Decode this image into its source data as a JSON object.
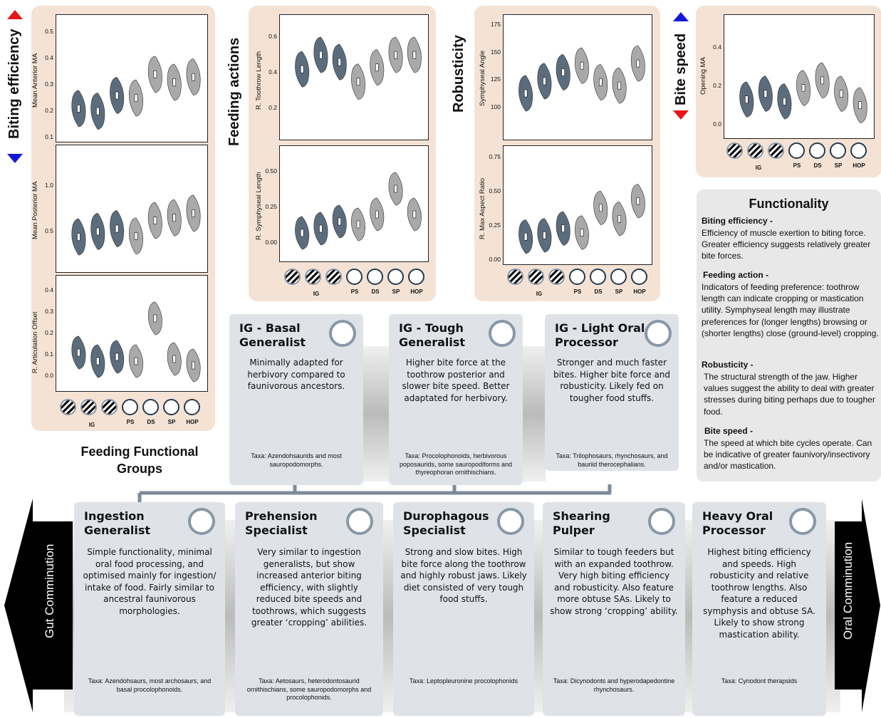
{
  "left_panel": {
    "title": "Biting efficiency",
    "plots": [
      {
        "ylabel": "Mean Anterior MA",
        "ticks": [
          "0.5",
          "0.4",
          "0.3",
          "0.2",
          "0.1"
        ],
        "medians": [
          0.21,
          0.2,
          0.26,
          0.25,
          0.34,
          0.31,
          0.33
        ]
      },
      {
        "ylabel": "Mean Posterior MA",
        "ticks": [
          "1.0",
          "0.5"
        ],
        "medians": [
          0.44,
          0.5,
          0.53,
          0.45,
          0.62,
          0.65,
          0.7
        ]
      },
      {
        "ylabel": "R. Articulation Offset",
        "ticks": [
          "0.4",
          "0.3",
          "0.2",
          "0.1",
          "0.0"
        ],
        "medians": [
          0.11,
          0.07,
          0.09,
          0.07,
          0.27,
          0.08,
          0.05
        ]
      }
    ]
  },
  "mid_panel": {
    "title": "Feeding actions",
    "plots": [
      {
        "ylabel": "R. Toothrow Length",
        "ticks": [
          "0.6",
          "0.4",
          "0.2"
        ],
        "medians": [
          0.42,
          0.5,
          0.46,
          0.35,
          0.43,
          0.5,
          0.5
        ]
      },
      {
        "ylabel": "R. Symphyseal Length",
        "ticks": [
          "0.50",
          "0.25",
          "0.00"
        ],
        "medians": [
          0.07,
          0.1,
          0.15,
          0.13,
          0.2,
          0.38,
          0.2
        ]
      }
    ]
  },
  "rob_panel": {
    "title": "Robusticity",
    "plots": [
      {
        "ylabel": "Symphyseal Angle",
        "ticks": [
          "175",
          "150",
          "125",
          "100"
        ],
        "medians": [
          113,
          124,
          132,
          138,
          123,
          120,
          140
        ]
      },
      {
        "ylabel": "R. Max Aspect Ratio",
        "ticks": [
          "0.75",
          "0.50",
          "0.25",
          "0.00"
        ],
        "medians": [
          0.17,
          0.18,
          0.23,
          0.2,
          0.38,
          0.3,
          0.43
        ]
      }
    ]
  },
  "speed_panel": {
    "title": "Bite speed",
    "plots": [
      {
        "ylabel": "Opening MA",
        "ticks": [
          "0.4",
          "0.2",
          "0.0"
        ],
        "medians": [
          0.13,
          0.16,
          0.12,
          0.19,
          0.23,
          0.16,
          0.1
        ]
      }
    ]
  },
  "categories": [
    "PS",
    "DS",
    "SP",
    "HOP"
  ],
  "ig_label": "IG",
  "ffg_title": "Feeding Functional\nGroups",
  "functionality": {
    "title": "Functionality",
    "items": [
      {
        "head": "Biting efficiency -",
        "body": "Efficiency of muscle exertion to biting force. Greater efficiency suggests relatively greater bite forces."
      },
      {
        "head": "Feeding action -",
        "body": "Indicators of feeding preference: toothrow length can indicate cropping or mastication utility. Symphyseal length may illustrate preferences for (longer lengths) browsing or (shorter lengths) close (ground-level) cropping."
      },
      {
        "head": "Robusticity -",
        "body": "The structural strength of the jaw. Higher values suggest the ability to deal with greater stresses during biting perhaps due to tougher food."
      },
      {
        "head": "Bite speed -",
        "body": "The speed at which bite cycles operate. Can be indicative of greater faunivory/insectivory and/or mastication."
      }
    ]
  },
  "ig_cards": [
    {
      "title": "IG - Basal\nGeneralist",
      "desc": "Minimally adapted for herbivory compared to faunivorous ancestors.",
      "taxa": "Taxa: Azendohsaurids and most sauropodomorphs."
    },
    {
      "title": "IG - Tough\nGeneralist",
      "desc": "Higher bite force at the toothrow posterior and slower bite speed. Better adaptated for herbivory.",
      "taxa": "Taxa: Procolophonoids, herbivorous poposaurids, some sauropodiforms and thyreophoran ornithischians."
    },
    {
      "title": "IG - Light Oral\nProcessor",
      "desc": "Stronger and much faster bites. Higher bite force and robusticity. Likely fed on tougher food stuffs.",
      "taxa": "Taxa: Trilophosaurs, rhynchosaurs, and bauriid therocephalians."
    }
  ],
  "bottom_cards": [
    {
      "title": "Ingestion\nGeneralist",
      "desc": "Simple functionality, minimal oral food processing, and optimised mainly for ingestion/ intake of food. Fairly similar to ancestral faunivorous morphologies.",
      "taxa": "Taxa: Azendohsaurs, most archosaurs, and basal procolophonoids."
    },
    {
      "title": "Prehension\nSpecialist",
      "desc": "Very similar to ingestion generalists, but show increased anterior biting efficiency, with slightly reduced bite speeds and toothrows, which suggests greater ‘cropping’ abilities.",
      "taxa": "Taxa: Aetosaurs, heterodontosaurid ornithischians, some sauropodomorphs and procolophonids."
    },
    {
      "title": "Durophagous\nSpecialist",
      "desc": "Strong and slow bites. High bite force along the toothrow and highly robust jaws. Likely diet consisted of very tough food stuffs.",
      "taxa": "Taxa: Leptopleuronine procolophonids"
    },
    {
      "title": "Shearing\nPulper",
      "desc": "Similar to tough feeders but with an expanded toothrow. Very high biting efficiency and robusticity. Also feature more obtuse SAs. Likely to show strong ‘cropping’ ability.",
      "taxa": "Taxa: Dicynodonts and hyperodapedontine rhynchosaurs."
    },
    {
      "title": "Heavy Oral\nProcessor",
      "desc": "Highest biting efficiency and speeds. High robusticity and relative toothrow lengths. Also feature a reduced symphysis and obtuse SA. Likely to show strong mastication ability.",
      "taxa": "Taxa: Cynodont therapsids"
    }
  ],
  "left_arrow": "Gut Comminution",
  "right_arrow": "Oral Comminution",
  "colors": {
    "ig": "#5b6c7d",
    "other": "#a9a9a9",
    "panel": "#f4e3d5",
    "card": "#dfe3e8",
    "red": "#e8141b",
    "blue": "#1517d6"
  }
}
